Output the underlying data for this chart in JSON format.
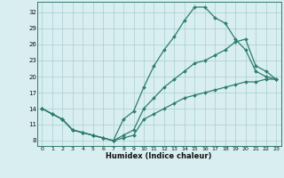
{
  "xlabel": "Humidex (Indice chaleur)",
  "bg_color": "#d8eef0",
  "line_color": "#2e7d6e",
  "grid_color": "#aacdd4",
  "xlim": [
    -0.5,
    23.5
  ],
  "ylim": [
    7,
    34
  ],
  "xticks": [
    0,
    1,
    2,
    3,
    4,
    5,
    6,
    7,
    8,
    9,
    10,
    11,
    12,
    13,
    14,
    15,
    16,
    17,
    18,
    19,
    20,
    21,
    22,
    23
  ],
  "yticks": [
    8,
    11,
    14,
    17,
    20,
    23,
    26,
    29,
    32
  ],
  "curve1_x": [
    0,
    1,
    2,
    3,
    4,
    5,
    6,
    7,
    8,
    9,
    10,
    11,
    12,
    13,
    14,
    15,
    16,
    17,
    18,
    19,
    20,
    21,
    22,
    23
  ],
  "curve1_y": [
    14,
    13,
    12,
    10,
    9.5,
    9,
    8.5,
    8,
    12,
    13.5,
    18,
    22,
    25,
    27.5,
    30.5,
    33,
    33,
    31,
    30,
    27,
    25,
    21,
    20,
    19.5
  ],
  "curve2_x": [
    0,
    1,
    2,
    3,
    4,
    5,
    6,
    7,
    8,
    9,
    10,
    11,
    12,
    13,
    14,
    15,
    16,
    17,
    18,
    19,
    20,
    21,
    22,
    23
  ],
  "curve2_y": [
    14,
    13,
    12,
    10,
    9.5,
    9,
    8.5,
    8,
    9,
    10,
    14,
    16,
    18,
    19.5,
    21,
    22.5,
    23,
    24,
    25,
    26.5,
    27,
    22,
    21,
    19.5
  ],
  "curve3_x": [
    0,
    1,
    2,
    3,
    4,
    5,
    6,
    7,
    8,
    9,
    10,
    11,
    12,
    13,
    14,
    15,
    16,
    17,
    18,
    19,
    20,
    21,
    22,
    23
  ],
  "curve3_y": [
    14,
    13,
    12,
    10,
    9.5,
    9,
    8.5,
    8,
    8.5,
    9,
    12,
    13,
    14,
    15,
    16,
    16.5,
    17,
    17.5,
    18,
    18.5,
    19,
    19,
    19.5,
    19.5
  ]
}
